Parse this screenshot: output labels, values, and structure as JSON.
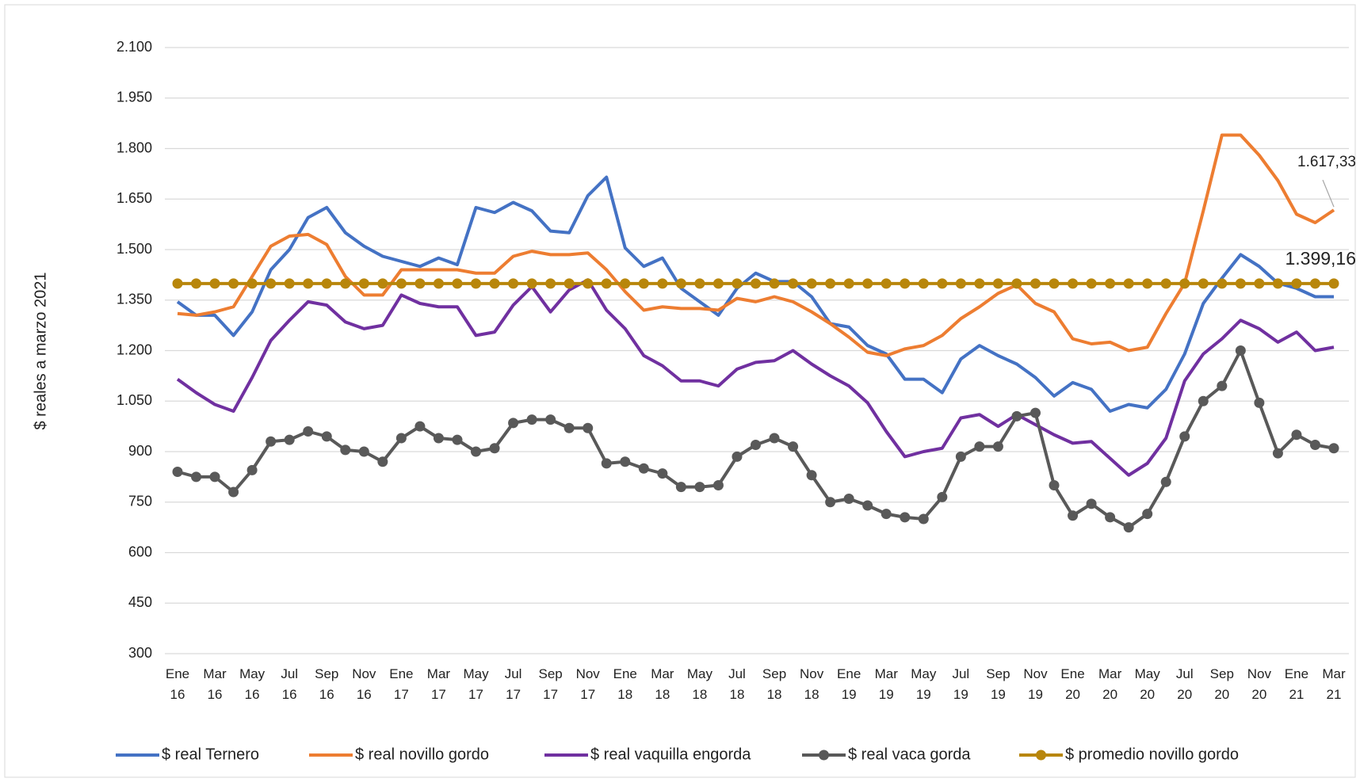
{
  "chart_data": {
    "type": "line",
    "y_label": "$ reales a marzo 2021",
    "categories": [
      "Ene 16",
      null,
      "Mar 16",
      null,
      "May 16",
      null,
      "Jul 16",
      null,
      "Sep 16",
      null,
      "Nov 16",
      null,
      "Ene 17",
      null,
      "Mar 17",
      null,
      "May 17",
      null,
      "Jul 17",
      null,
      "Sep 17",
      null,
      "Nov 17",
      null,
      "Ene 18",
      null,
      "Mar 18",
      null,
      "May 18",
      null,
      "Jul 18",
      null,
      "Sep 18",
      null,
      "Nov 18",
      null,
      "Ene 19",
      null,
      "Mar 19",
      null,
      "May 19",
      null,
      "Jul 19",
      null,
      "Sep 19",
      null,
      "Nov 19",
      null,
      "Ene 20",
      null,
      "Mar 20",
      null,
      "May 20",
      null,
      "Jul 20",
      null,
      "Sep 20",
      null,
      "Nov 20",
      null,
      "Ene 21",
      null,
      "Mar 21"
    ],
    "ylim": [
      300,
      2100
    ],
    "yticks": [
      300,
      450,
      600,
      750,
      900,
      {
        "value": 1050,
        "label": "1.050"
      },
      {
        "value": 1200,
        "label": "1.200"
      },
      {
        "value": 1350,
        "label": "1.350"
      },
      {
        "value": 1500,
        "label": "1.500"
      },
      {
        "value": 1650,
        "label": "1.650"
      },
      {
        "value": 1800,
        "label": "1.800"
      },
      {
        "value": 1950,
        "label": "1.950"
      },
      {
        "value": 2100,
        "label": "2.100"
      }
    ],
    "grid": true,
    "legend": "bottom",
    "series": [
      {
        "name": "$ real Ternero",
        "color": "#4472c4",
        "markers": false,
        "values": [
          1345,
          1305,
          1305,
          1245,
          1315,
          1440,
          1500,
          1595,
          1625,
          1550,
          1510,
          1480,
          1465,
          1450,
          1475,
          1455,
          1625,
          1610,
          1640,
          1615,
          1555,
          1550,
          1660,
          1715,
          1505,
          1450,
          1475,
          1385,
          1345,
          1305,
          1385,
          1430,
          1405,
          1405,
          1360,
          1280,
          1270,
          1215,
          1190,
          1115,
          1115,
          1075,
          1175,
          1215,
          1185,
          1160,
          1120,
          1065,
          1105,
          1085,
          1020,
          1040,
          1030,
          1085,
          1190,
          1340,
          1415,
          1485,
          1450,
          1400,
          1385,
          1360,
          1360
        ]
      },
      {
        "name": "$ real novillo gordo",
        "color": "#ed7d31",
        "markers": false,
        "values": [
          1310,
          1305,
          1315,
          1330,
          1420,
          1510,
          1540,
          1545,
          1515,
          1420,
          1365,
          1365,
          1440,
          1440,
          1440,
          1440,
          1430,
          1430,
          1480,
          1495,
          1485,
          1485,
          1490,
          1440,
          1375,
          1320,
          1330,
          1325,
          1325,
          1320,
          1355,
          1345,
          1360,
          1345,
          1315,
          1280,
          1240,
          1195,
          1185,
          1205,
          1215,
          1245,
          1295,
          1330,
          1370,
          1395,
          1340,
          1315,
          1235,
          1220,
          1225,
          1200,
          1210,
          1310,
          1400,
          1615,
          1840,
          1840,
          1780,
          1705,
          1605,
          1580,
          1617.33
        ],
        "value_labels": [
          null,
          null,
          null,
          null,
          null,
          null,
          null,
          null,
          null,
          null,
          null,
          null,
          null,
          null,
          null,
          null,
          null,
          null,
          null,
          null,
          null,
          null,
          null,
          null,
          null,
          null,
          null,
          null,
          null,
          null,
          null,
          null,
          null,
          null,
          null,
          null,
          null,
          null,
          null,
          null,
          null,
          null,
          null,
          null,
          null,
          null,
          null,
          null,
          null,
          null,
          null,
          null,
          null,
          null,
          null,
          null,
          null,
          null,
          null,
          null,
          null,
          null,
          "1.617,33"
        ]
      },
      {
        "name": "$ real vaquilla engorda",
        "color": "#7030a0",
        "markers": false,
        "values": [
          1115,
          1075,
          1040,
          1020,
          1120,
          1230,
          1290,
          1345,
          1335,
          1285,
          1265,
          1275,
          1365,
          1340,
          1330,
          1330,
          1245,
          1255,
          1335,
          1390,
          1315,
          1380,
          1410,
          1320,
          1265,
          1185,
          1155,
          1110,
          1110,
          1095,
          1145,
          1165,
          1170,
          1200,
          1160,
          1125,
          1095,
          1045,
          960,
          885,
          900,
          910,
          1000,
          1010,
          975,
          1010,
          980,
          950,
          925,
          930,
          880,
          830,
          865,
          940,
          1110,
          1190,
          1235,
          1290,
          1265,
          1225,
          1255,
          1200,
          1210
        ]
      },
      {
        "name": "$ real vaca gorda",
        "color": "#595959",
        "markers": true,
        "values": [
          840,
          825,
          825,
          780,
          845,
          930,
          935,
          960,
          945,
          905,
          900,
          870,
          940,
          975,
          940,
          935,
          900,
          910,
          985,
          995,
          995,
          970,
          970,
          865,
          870,
          850,
          835,
          795,
          795,
          800,
          885,
          920,
          940,
          915,
          830,
          750,
          760,
          740,
          715,
          705,
          700,
          765,
          885,
          915,
          915,
          1005,
          1015,
          800,
          710,
          745,
          705,
          675,
          715,
          810,
          945,
          1050,
          1095,
          1200,
          1045,
          895,
          950,
          920,
          910
        ]
      },
      {
        "name": "$ promedio novillo gordo",
        "color": "#b8860b",
        "markers": true,
        "values": [
          1399.16,
          1399.16,
          1399.16,
          1399.16,
          1399.16,
          1399.16,
          1399.16,
          1399.16,
          1399.16,
          1399.16,
          1399.16,
          1399.16,
          1399.16,
          1399.16,
          1399.16,
          1399.16,
          1399.16,
          1399.16,
          1399.16,
          1399.16,
          1399.16,
          1399.16,
          1399.16,
          1399.16,
          1399.16,
          1399.16,
          1399.16,
          1399.16,
          1399.16,
          1399.16,
          1399.16,
          1399.16,
          1399.16,
          1399.16,
          1399.16,
          1399.16,
          1399.16,
          1399.16,
          1399.16,
          1399.16,
          1399.16,
          1399.16,
          1399.16,
          1399.16,
          1399.16,
          1399.16,
          1399.16,
          1399.16,
          1399.16,
          1399.16,
          1399.16,
          1399.16,
          1399.16,
          1399.16,
          1399.16,
          1399.16,
          1399.16,
          1399.16,
          1399.16,
          1399.16,
          1399.16,
          1399.16,
          1399.16
        ],
        "value_labels": [
          null,
          null,
          null,
          null,
          null,
          null,
          null,
          null,
          null,
          null,
          null,
          null,
          null,
          null,
          null,
          null,
          null,
          null,
          null,
          null,
          null,
          null,
          null,
          null,
          null,
          null,
          null,
          null,
          null,
          null,
          null,
          null,
          null,
          null,
          null,
          null,
          null,
          null,
          null,
          null,
          null,
          null,
          null,
          null,
          null,
          null,
          null,
          null,
          null,
          null,
          null,
          null,
          null,
          null,
          null,
          null,
          null,
          null,
          null,
          null,
          null,
          null,
          "1.399,16"
        ]
      }
    ]
  }
}
